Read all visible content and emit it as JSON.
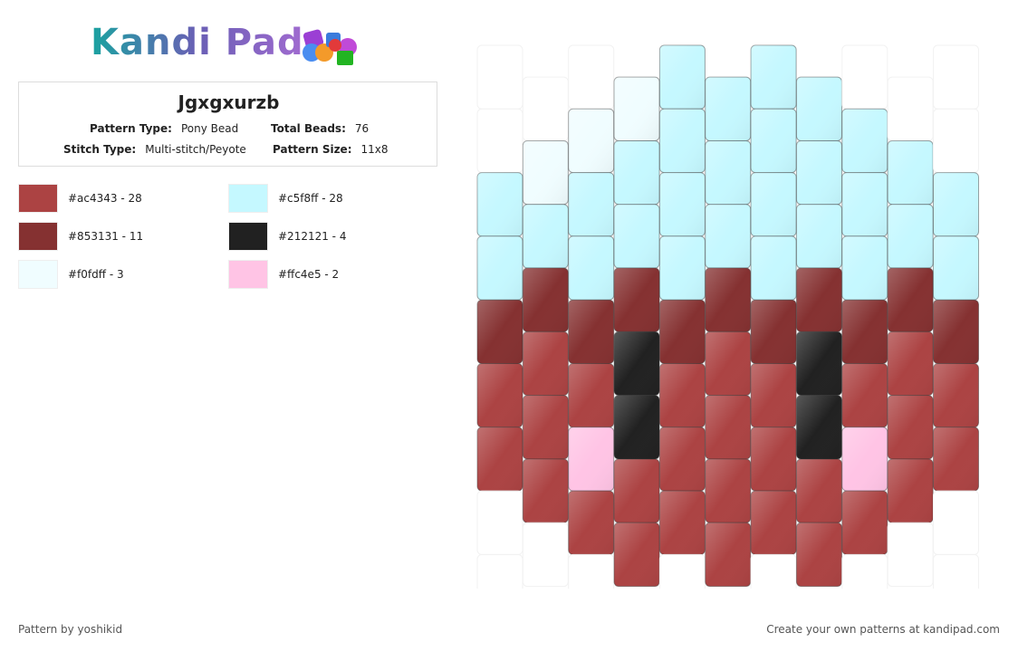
{
  "header": {
    "logo": "Kandi Pad"
  },
  "pattern": {
    "title": "Jgxgxurzb",
    "info": [
      {
        "label": "Pattern Type:",
        "value": "Pony Bead"
      },
      {
        "label": "Total Beads:",
        "value": "76"
      },
      {
        "label": "Stitch Type:",
        "value": "Multi-stitch/Peyote"
      },
      {
        "label": "Pattern Size:",
        "value": "11x8"
      }
    ],
    "legend": [
      {
        "color": "#ac4343",
        "label": "#ac4343 - 28"
      },
      {
        "color": "#c5f8ff",
        "label": "#c5f8ff - 28"
      },
      {
        "color": "#853131",
        "label": "#853131 - 11"
      },
      {
        "color": "#212121",
        "label": "#212121 - 4"
      },
      {
        "color": "#f0fdff",
        "label": "#f0fdff - 3"
      },
      {
        "color": "#ffc4e5",
        "label": "#ffc4e5 - 2"
      }
    ],
    "columns": [
      [
        null,
        null,
        "#c5f8ff",
        "#c5f8ff",
        "#853131",
        "#ac4343",
        "#ac4343",
        null,
        null
      ],
      [
        null,
        "#f0fdff",
        "#c5f8ff",
        "#853131",
        "#ac4343",
        "#ac4343",
        "#ac4343",
        null
      ],
      [
        null,
        "#f0fdff",
        "#c5f8ff",
        "#c5f8ff",
        "#853131",
        "#ac4343",
        "#ffc4e5",
        "#ac4343",
        null
      ],
      [
        "#f0fdff",
        "#c5f8ff",
        "#c5f8ff",
        "#853131",
        "#212121",
        "#212121",
        "#ac4343",
        "#ac4343"
      ],
      [
        "#c5f8ff",
        "#c5f8ff",
        "#c5f8ff",
        "#c5f8ff",
        "#853131",
        "#ac4343",
        "#ac4343",
        "#ac4343",
        null
      ],
      [
        "#c5f8ff",
        "#c5f8ff",
        "#c5f8ff",
        "#853131",
        "#ac4343",
        "#ac4343",
        "#ac4343",
        "#ac4343"
      ],
      [
        "#c5f8ff",
        "#c5f8ff",
        "#c5f8ff",
        "#c5f8ff",
        "#853131",
        "#ac4343",
        "#ac4343",
        "#ac4343",
        null
      ],
      [
        "#c5f8ff",
        "#c5f8ff",
        "#c5f8ff",
        "#853131",
        "#212121",
        "#212121",
        "#ac4343",
        "#ac4343"
      ],
      [
        null,
        "#c5f8ff",
        "#c5f8ff",
        "#c5f8ff",
        "#853131",
        "#ac4343",
        "#ffc4e5",
        "#ac4343",
        null
      ],
      [
        null,
        "#c5f8ff",
        "#c5f8ff",
        "#853131",
        "#ac4343",
        "#ac4343",
        "#ac4343",
        null
      ],
      [
        null,
        null,
        "#c5f8ff",
        "#c5f8ff",
        "#853131",
        "#ac4343",
        "#ac4343",
        null,
        null
      ]
    ]
  },
  "footer": {
    "credit": "Pattern by yoshikid",
    "promo": "Create your own patterns at kandipad.com"
  }
}
